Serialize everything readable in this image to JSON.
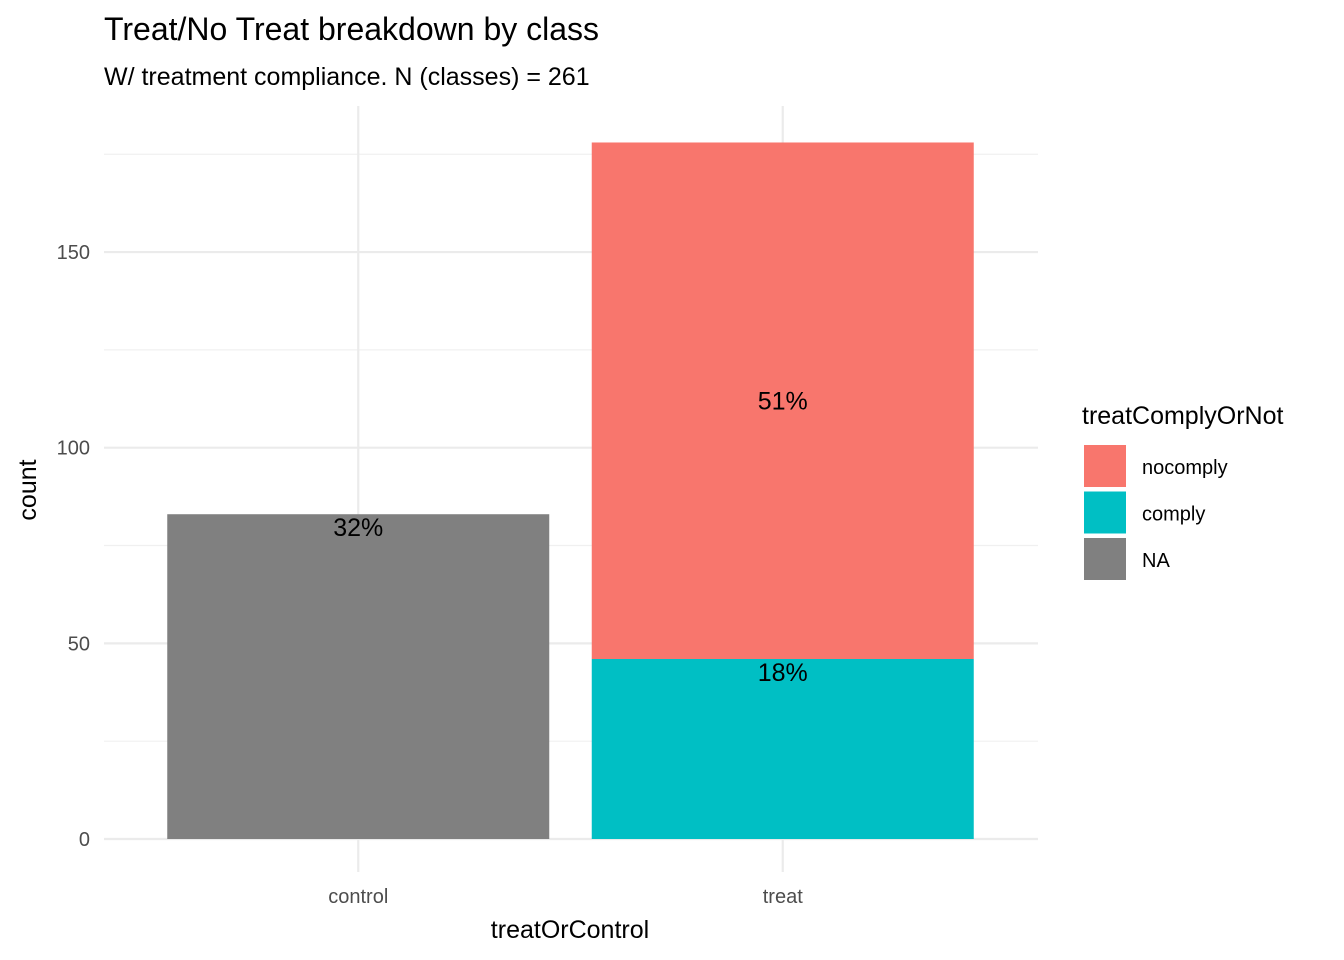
{
  "chart_data": {
    "type": "bar",
    "stacked": true,
    "title": "Treat/No Treat breakdown by class",
    "subtitle": "W/ treatment compliance. N (classes) = 261",
    "xlabel": "treatOrControl",
    "ylabel": "count",
    "categories": [
      "control",
      "treat"
    ],
    "ylim": [
      0,
      178
    ],
    "yticks": [
      0,
      50,
      100,
      150
    ],
    "grid": true,
    "legend": {
      "title": "treatComplyOrNot",
      "placement": "right",
      "entries": [
        {
          "label": "nocomply",
          "color": "#F8766D"
        },
        {
          "label": "comply",
          "color": "#00BFC4"
        },
        {
          "label": "NA",
          "color": "#808080"
        }
      ]
    },
    "series": [
      {
        "name": "comply",
        "color": "#00BFC4",
        "values": [
          0,
          46
        ],
        "labels": [
          "",
          "18%"
        ]
      },
      {
        "name": "nocomply",
        "color": "#F8766D",
        "values": [
          0,
          132
        ],
        "labels": [
          "",
          "51%"
        ]
      },
      {
        "name": "NA",
        "color": "#808080",
        "values": [
          83,
          0
        ],
        "labels": [
          "32%",
          ""
        ]
      }
    ]
  }
}
